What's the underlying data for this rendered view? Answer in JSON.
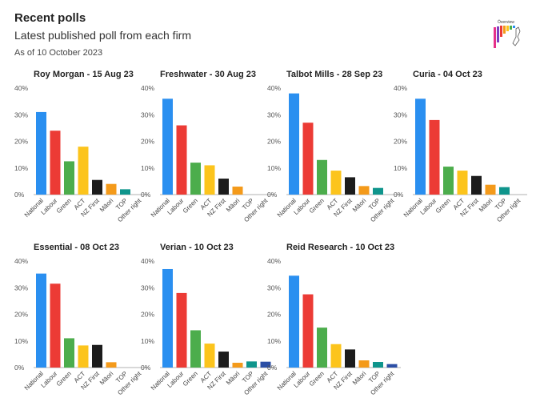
{
  "page": {
    "title": "Recent polls",
    "subtitle": "Latest published poll from each firm",
    "date": "As of 10 October 2023",
    "logo_text": "Ōverview"
  },
  "chart_data": [
    {
      "type": "bar",
      "title": "Roy Morgan - 15 Aug 23",
      "categories": [
        "National",
        "Labour",
        "Green",
        "ACT",
        "NZ First",
        "Māori",
        "TOP",
        "Other right"
      ],
      "values": [
        31,
        24,
        12.5,
        18,
        5.5,
        4,
        2,
        0
      ],
      "yticks": [
        "0%",
        "10%",
        "20%",
        "30%",
        "40%"
      ],
      "ylim": [
        0,
        40
      ]
    },
    {
      "type": "bar",
      "title": "Freshwater - 30 Aug 23",
      "categories": [
        "National",
        "Labour",
        "Green",
        "ACT",
        "NZ First",
        "Māori",
        "TOP",
        "Other right"
      ],
      "values": [
        36,
        26,
        12,
        11,
        6,
        3,
        0,
        0
      ],
      "yticks": [
        "0%",
        "10%",
        "20%",
        "30%",
        "40%"
      ],
      "ylim": [
        0,
        40
      ]
    },
    {
      "type": "bar",
      "title": "Talbot Mills - 28 Sep 23",
      "categories": [
        "National",
        "Labour",
        "Green",
        "ACT",
        "NZ First",
        "Māori",
        "TOP",
        "Other right"
      ],
      "values": [
        38,
        27,
        13,
        9,
        6.5,
        3.2,
        2.5,
        0
      ],
      "yticks": [
        "0%",
        "10%",
        "20%",
        "30%",
        "40%"
      ],
      "ylim": [
        0,
        40
      ]
    },
    {
      "type": "bar",
      "title": "Curia - 04 Oct 23",
      "categories": [
        "National",
        "Labour",
        "Green",
        "ACT",
        "NZ First",
        "Māori",
        "TOP",
        "Other right"
      ],
      "values": [
        36,
        28,
        10.5,
        9,
        7,
        3.7,
        2.8,
        0
      ],
      "yticks": [
        "0%",
        "10%",
        "20%",
        "30%",
        "40%"
      ],
      "ylim": [
        0,
        40
      ]
    },
    {
      "type": "bar",
      "title": "Essential - 08 Oct 23",
      "categories": [
        "National",
        "Labour",
        "Green",
        "ACT",
        "NZ First",
        "Māori",
        "TOP",
        "Other right"
      ],
      "values": [
        35.3,
        31.5,
        11,
        8.3,
        8.5,
        2,
        0,
        0
      ],
      "yticks": [
        "0%",
        "10%",
        "20%",
        "30%",
        "40%"
      ],
      "ylim": [
        0,
        40
      ]
    },
    {
      "type": "bar",
      "title": "Verian - 10 Oct 23",
      "categories": [
        "National",
        "Labour",
        "Green",
        "ACT",
        "NZ First",
        "Māori",
        "TOP",
        "Other right"
      ],
      "values": [
        37,
        28,
        14,
        9,
        6,
        1.8,
        2.3,
        2.2
      ],
      "yticks": [
        "0%",
        "10%",
        "20%",
        "30%",
        "40%"
      ],
      "ylim": [
        0,
        40
      ]
    },
    {
      "type": "bar",
      "title": "Reid Research - 10 Oct 23",
      "categories": [
        "National",
        "Labour",
        "Green",
        "ACT",
        "NZ First",
        "Māori",
        "TOP",
        "Other right"
      ],
      "values": [
        34.5,
        27.5,
        15,
        8.8,
        6.8,
        2.7,
        2.1,
        1.3
      ],
      "yticks": [
        "0%",
        "10%",
        "20%",
        "30%",
        "40%"
      ],
      "ylim": [
        0,
        40
      ]
    }
  ],
  "colors": {
    "National": "#2a8ff0",
    "Labour": "#ec3b35",
    "Green": "#4cad4c",
    "ACT": "#fcc41c",
    "NZ First": "#1c1c1c",
    "Māori": "#f49a1a",
    "TOP": "#0f958c",
    "Other right": "#2c4fa6",
    "axis": "#999999",
    "text": "#222222"
  }
}
